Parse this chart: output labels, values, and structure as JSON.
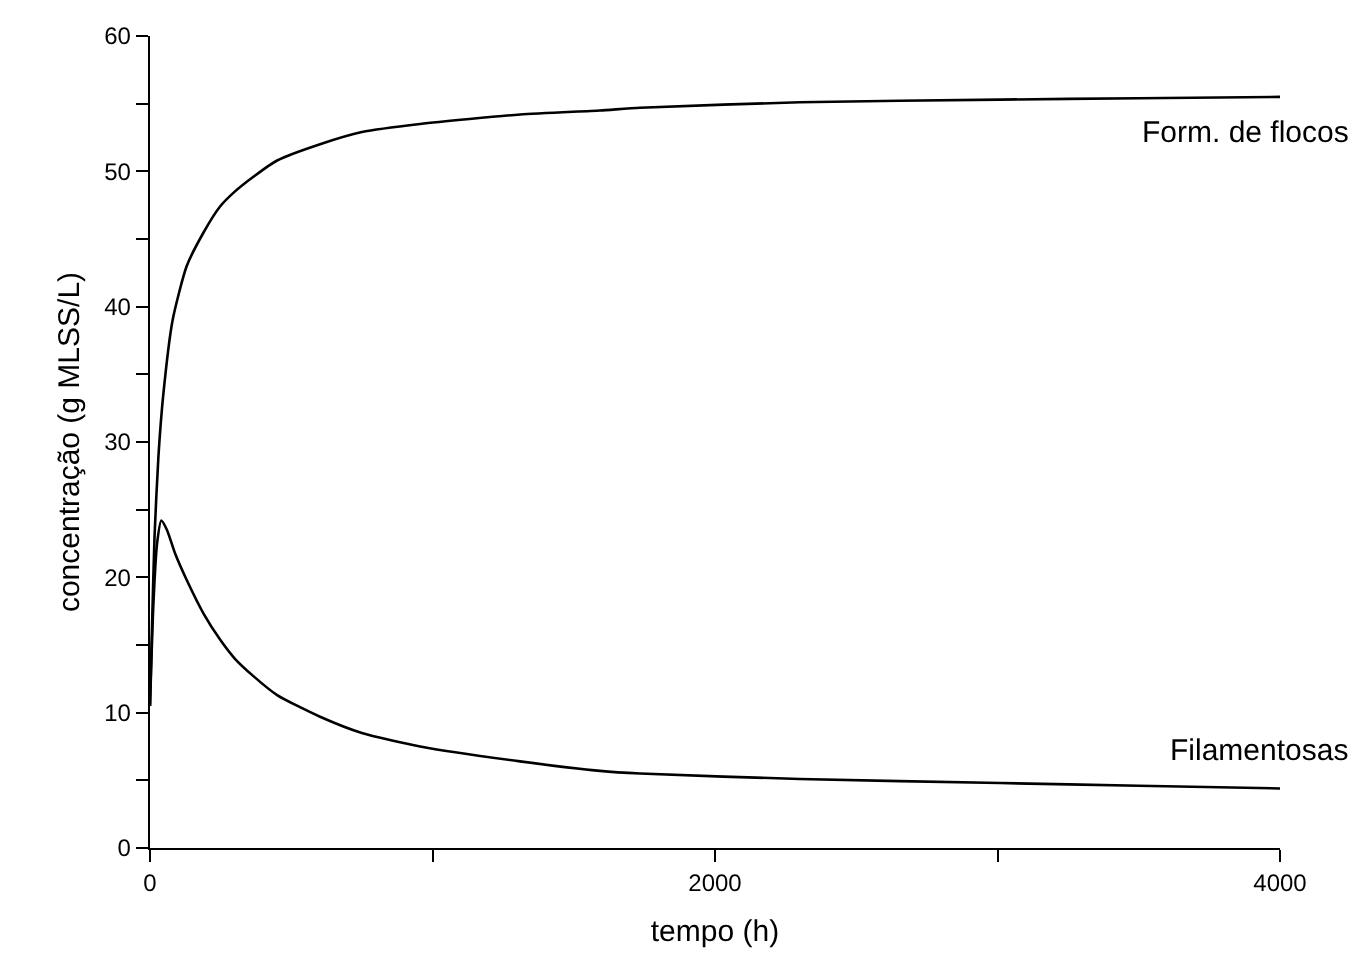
{
  "chart_data": {
    "type": "line",
    "xlabel": "tempo (h)",
    "ylabel": "concentração (g MLSS/L)",
    "xlim": [
      0,
      4000
    ],
    "ylim": [
      0,
      60
    ],
    "xticks": [
      0,
      {
        "value": 1000,
        "label": null
      },
      2000,
      {
        "value": 3000,
        "label": null
      },
      4000
    ],
    "yticks": [
      0,
      {
        "value": 5,
        "label": null
      },
      10,
      {
        "value": 15,
        "label": null
      },
      20,
      {
        "value": 25,
        "label": null
      },
      30,
      {
        "value": 35,
        "label": null
      },
      40,
      {
        "value": 45,
        "label": null
      },
      50,
      {
        "value": 55,
        "label": null
      },
      60
    ],
    "marker": "none",
    "line_style": "solid",
    "series": [
      {
        "name": "Form. de flocos",
        "color": "#000000",
        "x": [
          0,
          8,
          16,
          30,
          47,
          80,
          130,
          190,
          248,
          300,
          366,
          450,
          602,
          750,
          956,
          1310,
          1593,
          1735,
          2300,
          3009,
          3500,
          4000
        ],
        "values": [
          10.5,
          17,
          23,
          29,
          33.5,
          39,
          43,
          45.5,
          47.4,
          48.5,
          49.6,
          50.8,
          52,
          52.9,
          53.5,
          54.2,
          54.5,
          54.7,
          55.1,
          55.3,
          55.4,
          55.5
        ]
      },
      {
        "name": "Filamentosas",
        "color": "#000000",
        "x": [
          0,
          12,
          25,
          40,
          60,
          90,
          130,
          190,
          248,
          300,
          366,
          450,
          602,
          750,
          956,
          1310,
          1593,
          1735,
          2300,
          3009,
          3500,
          4000
        ],
        "values": [
          10.5,
          18,
          22.5,
          24.2,
          23.5,
          21.7,
          19.8,
          17.3,
          15.4,
          14,
          12.7,
          11.3,
          9.7,
          8.5,
          7.5,
          6.4,
          5.7,
          5.5,
          5.1,
          4.8,
          4.6,
          4.4
        ]
      }
    ]
  }
}
